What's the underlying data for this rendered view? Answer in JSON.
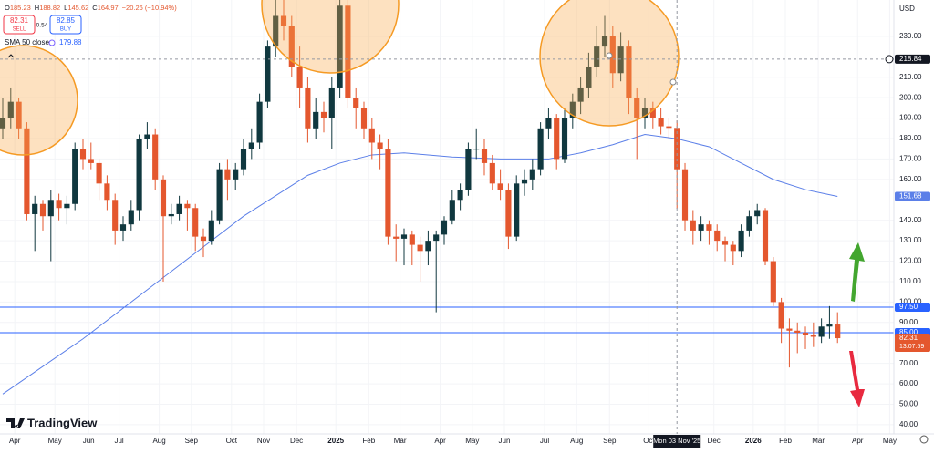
{
  "chart_data": {
    "type": "candlestick",
    "currency": "USD",
    "brand": "TradingView",
    "header": {
      "labels": [
        "O",
        "H",
        "L",
        "C"
      ],
      "change_label": "−20.26 (−10.94%)"
    },
    "trade": {
      "sell_label": "SELL",
      "spread": 0.54,
      "buy": 82.85,
      "buy_label": "BUY"
    },
    "up_color": "#10383f",
    "down_color": "#e4572e",
    "xlim": [
      -0.34,
      111.02
    ],
    "ylim": [
      35.5,
      247.8
    ],
    "xticks": [
      {
        "value": 1.5,
        "label": "Apr"
      },
      {
        "value": 6.5,
        "label": "May"
      },
      {
        "value": 10.7,
        "label": "Jun"
      },
      {
        "value": 14.5,
        "label": "Jul"
      },
      {
        "value": 19.5,
        "label": "Aug"
      },
      {
        "value": 23.5,
        "label": "Sep"
      },
      {
        "value": 28.5,
        "label": "Oct"
      },
      {
        "value": 32.5,
        "label": "Nov"
      },
      {
        "value": 36.6,
        "label": "Dec"
      },
      {
        "value": 41.5,
        "label": "2025"
      },
      {
        "value": 45.6,
        "label": "Feb"
      },
      {
        "value": 49.5,
        "label": "Mar"
      },
      {
        "value": 54.5,
        "label": "Apr"
      },
      {
        "value": 58.5,
        "label": "May"
      },
      {
        "value": 62.5,
        "label": "Jun"
      },
      {
        "value": 67.5,
        "label": "Jul"
      },
      {
        "value": 71.5,
        "label": "Aug"
      },
      {
        "value": 75.6,
        "label": "Sep"
      },
      {
        "value": 80.5,
        "label": "Oct"
      },
      {
        "value": 88.6,
        "label": "Dec"
      },
      {
        "value": 93.5,
        "label": "2026"
      },
      {
        "value": 97.5,
        "label": "Feb"
      },
      {
        "value": 101.6,
        "label": "Mar"
      },
      {
        "value": 106.5,
        "label": "Apr"
      },
      {
        "value": 110.5,
        "label": "May"
      }
    ],
    "yticks": [
      {
        "value": 230,
        "label": "230.00"
      },
      {
        "value": 210,
        "label": "210.00"
      },
      {
        "value": 200,
        "label": "200.00"
      },
      {
        "value": 190,
        "label": "190.00"
      },
      {
        "value": 180,
        "label": "180.00"
      },
      {
        "value": 170,
        "label": "170.00"
      },
      {
        "value": 160,
        "label": "160.00"
      },
      {
        "value": 140,
        "label": "140.00"
      },
      {
        "value": 130,
        "label": "130.00"
      },
      {
        "value": 120,
        "label": "120.00"
      },
      {
        "value": 110,
        "label": "110.00"
      },
      {
        "value": 100,
        "label": "100.00"
      },
      {
        "value": 90,
        "label": "90.00"
      },
      {
        "value": 70,
        "label": "70.00"
      },
      {
        "value": 60,
        "label": "60.00"
      },
      {
        "value": 50,
        "label": "50.00"
      },
      {
        "value": 40,
        "label": "40.00"
      }
    ],
    "candles": [
      [
        185,
        200,
        180,
        190
      ],
      [
        190,
        205,
        185,
        198
      ],
      [
        198,
        200,
        180,
        185
      ],
      [
        185,
        188,
        140,
        143
      ],
      [
        143,
        152,
        125,
        148
      ],
      [
        148,
        150,
        135,
        142
      ],
      [
        142,
        155,
        120,
        150
      ],
      [
        150,
        153,
        140,
        146
      ],
      [
        146,
        152,
        138,
        148
      ],
      [
        148,
        178,
        145,
        175
      ],
      [
        175,
        180,
        165,
        170
      ],
      [
        170,
        178,
        165,
        168
      ],
      [
        168,
        170,
        150,
        158
      ],
      [
        158,
        162,
        145,
        150
      ],
      [
        150,
        153,
        128,
        135
      ],
      [
        135,
        142,
        130,
        138
      ],
      [
        138,
        150,
        135,
        145
      ],
      [
        145,
        182,
        140,
        180
      ],
      [
        180,
        188,
        175,
        182
      ],
      [
        182,
        185,
        155,
        160
      ],
      [
        160,
        162,
        110,
        142
      ],
      [
        142,
        148,
        138,
        143
      ],
      [
        143,
        152,
        140,
        148
      ],
      [
        148,
        150,
        135,
        146
      ],
      [
        146,
        148,
        125,
        132
      ],
      [
        132,
        136,
        122,
        130
      ],
      [
        130,
        145,
        128,
        140
      ],
      [
        140,
        168,
        138,
        165
      ],
      [
        165,
        170,
        150,
        160
      ],
      [
        160,
        168,
        155,
        165
      ],
      [
        165,
        180,
        162,
        175
      ],
      [
        175,
        185,
        170,
        178
      ],
      [
        178,
        202,
        175,
        198
      ],
      [
        198,
        228,
        195,
        225
      ],
      [
        225,
        250,
        220,
        240
      ],
      [
        240,
        248,
        228,
        235
      ],
      [
        235,
        240,
        210,
        215
      ],
      [
        215,
        225,
        195,
        205
      ],
      [
        205,
        210,
        178,
        185
      ],
      [
        185,
        200,
        180,
        193
      ],
      [
        193,
        198,
        183,
        190
      ],
      [
        190,
        210,
        175,
        205
      ],
      [
        205,
        252,
        200,
        245
      ],
      [
        245,
        248,
        195,
        200
      ],
      [
        200,
        205,
        185,
        195
      ],
      [
        195,
        198,
        180,
        185
      ],
      [
        185,
        190,
        170,
        178
      ],
      [
        178,
        182,
        165,
        175
      ],
      [
        175,
        180,
        128,
        132
      ],
      [
        132,
        138,
        120,
        131
      ],
      [
        131,
        136,
        118,
        133
      ],
      [
        133,
        135,
        118,
        128
      ],
      [
        128,
        132,
        110,
        125
      ],
      [
        125,
        135,
        118,
        130
      ],
      [
        130,
        135,
        95,
        133
      ],
      [
        133,
        142,
        128,
        140
      ],
      [
        140,
        155,
        138,
        150
      ],
      [
        150,
        158,
        145,
        155
      ],
      [
        155,
        178,
        152,
        175
      ],
      [
        175,
        185,
        170,
        175
      ],
      [
        175,
        180,
        162,
        168
      ],
      [
        168,
        172,
        155,
        158
      ],
      [
        158,
        165,
        150,
        155
      ],
      [
        155,
        158,
        126,
        132
      ],
      [
        132,
        162,
        130,
        158
      ],
      [
        158,
        165,
        152,
        160
      ],
      [
        160,
        170,
        155,
        165
      ],
      [
        165,
        188,
        162,
        185
      ],
      [
        185,
        195,
        180,
        190
      ],
      [
        190,
        192,
        165,
        170
      ],
      [
        170,
        195,
        168,
        190
      ],
      [
        190,
        202,
        185,
        198
      ],
      [
        198,
        210,
        192,
        205
      ],
      [
        205,
        222,
        200,
        215
      ],
      [
        215,
        235,
        210,
        225
      ],
      [
        225,
        240,
        220,
        230
      ],
      [
        230,
        235,
        205,
        212
      ],
      [
        212,
        232,
        208,
        225
      ],
      [
        225,
        228,
        192,
        200
      ],
      [
        200,
        205,
        170,
        190
      ],
      [
        190,
        200,
        185,
        195
      ],
      [
        195,
        198,
        185,
        190
      ],
      [
        190,
        195,
        182,
        186
      ],
      [
        186,
        190,
        180,
        185.23
      ],
      [
        185.23,
        188.82,
        145.62,
        164.97
      ],
      [
        164.97,
        168,
        135,
        140
      ],
      [
        140,
        145,
        128,
        135
      ],
      [
        135,
        142,
        130,
        138
      ],
      [
        138,
        140,
        128,
        135
      ],
      [
        135,
        138,
        125,
        130
      ],
      [
        130,
        132,
        120,
        128
      ],
      [
        128,
        130,
        118,
        125
      ],
      [
        125,
        138,
        122,
        135
      ],
      [
        135,
        145,
        132,
        142
      ],
      [
        142,
        148,
        138,
        145
      ],
      [
        145,
        146,
        118,
        120
      ],
      [
        120,
        122,
        98,
        100
      ],
      [
        100,
        102,
        80,
        87
      ],
      [
        87,
        92,
        68,
        86
      ],
      [
        86,
        90,
        75,
        85
      ],
      [
        85,
        88,
        77,
        84
      ],
      [
        84,
        90,
        78,
        83
      ],
      [
        83,
        92,
        80,
        88
      ],
      [
        88,
        98,
        82,
        89
      ],
      [
        89,
        95,
        80,
        82.31
      ]
    ],
    "hover_index": 84,
    "countdown": "13:07:59",
    "sma": {
      "name": "SMA 50 close",
      "color": "#5b7fe8",
      "x": [
        0,
        10,
        20,
        30,
        38,
        42,
        46,
        50,
        56,
        62,
        68,
        72,
        76,
        80,
        84,
        88,
        92,
        96,
        100,
        104
      ],
      "values": [
        55,
        82,
        112,
        142,
        162,
        168,
        172,
        173,
        171,
        170,
        170,
        173,
        177,
        182,
        179.88,
        176,
        168,
        160,
        155,
        151.68
      ]
    },
    "hlines": [
      {
        "value": 97.5,
        "label": "97.50",
        "color": "#2962ff"
      },
      {
        "value": 85,
        "label": "85.00",
        "color": "#2962ff"
      }
    ],
    "crosshair": {
      "price": 218.84,
      "date": "Mon 03 Nov '25"
    }
  }
}
